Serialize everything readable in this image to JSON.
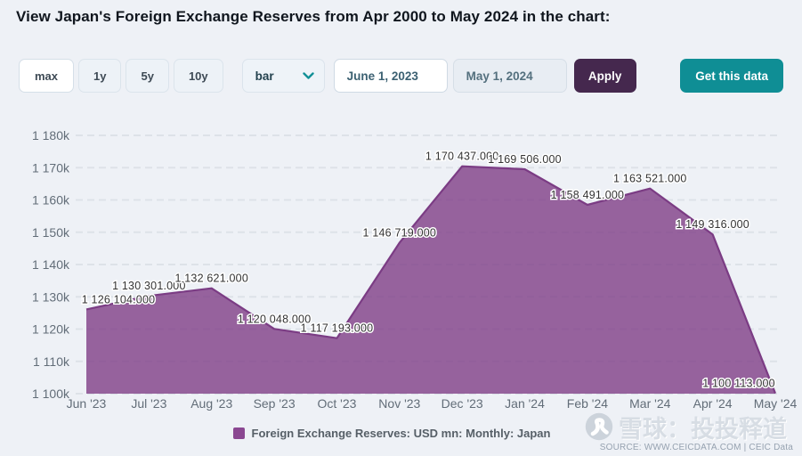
{
  "title": "View Japan's Foreign Exchange Reserves from Apr 2000 to May 2024 in the chart:",
  "toolbar": {
    "range_buttons": [
      {
        "label": "max",
        "active": true
      },
      {
        "label": "1y",
        "active": false
      },
      {
        "label": "5y",
        "active": false
      },
      {
        "label": "10y",
        "active": false
      }
    ],
    "chart_type": {
      "value": "bar"
    },
    "date_from": "June 1, 2023",
    "date_to": "May 1, 2024",
    "apply_label": "Apply",
    "get_data_label": "Get this data"
  },
  "chart_data": {
    "type": "area",
    "title": "",
    "xlabel": "",
    "ylabel": "",
    "categories": [
      "Jun '23",
      "Jul '23",
      "Aug '23",
      "Sep '23",
      "Oct '23",
      "Nov '23",
      "Dec '23",
      "Jan '24",
      "Feb '24",
      "Mar '24",
      "Apr '24",
      "May '24"
    ],
    "series": [
      {
        "name": "Foreign Exchange Reserves: USD mn: Monthly: Japan",
        "values": [
          1126104,
          1130301,
          1132621,
          1120048,
          1117193,
          1146719,
          1170437,
          1169506,
          1158491,
          1163521,
          1149316,
          1100113
        ]
      }
    ],
    "value_decimals": 3,
    "ylim": [
      1100000,
      1180000
    ],
    "y_tick_step": 10000,
    "y_tick_labels": [
      "1 100k",
      "1 110k",
      "1 120k",
      "1 130k",
      "1 140k",
      "1 150k",
      "1 160k",
      "1 170k",
      "1 180k"
    ],
    "grid": "dashed",
    "legend_position": "bottom",
    "colors": {
      "area_fill": "#7f3f87",
      "area_fill_opacity": 0.8,
      "area_stroke": "#7b3c84",
      "legend_swatch": "#8a4791",
      "grid_line": "#dde2e8",
      "axis_text": "#626d78",
      "data_label_text": "#333333",
      "data_label_halo": "#ffffff"
    }
  },
  "legend": {
    "label": "Foreign Exchange Reserves: USD mn: Monthly: Japan"
  },
  "footer": {
    "watermark": "雪球：投投释道",
    "source": "SOURCE: WWW.CEICDATA.COM | CEIC Data",
    "watermark_logo": "snowball-logo-icon"
  },
  "accent_colors": {
    "apply": "#45284e",
    "get_data": "#0f8e95",
    "page_bg": "#eef1f6"
  }
}
